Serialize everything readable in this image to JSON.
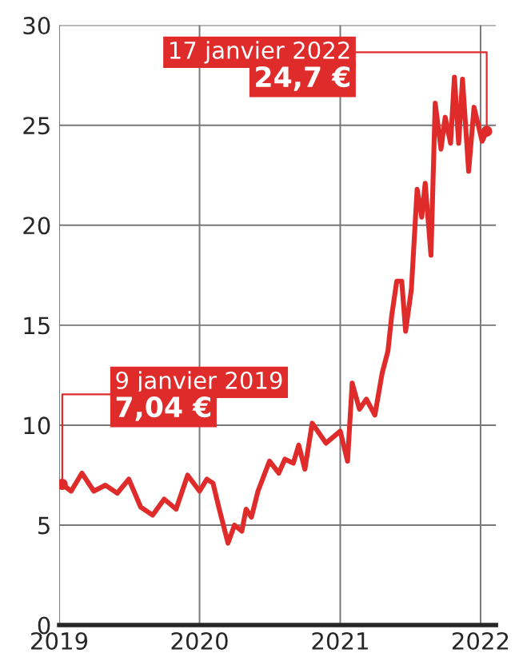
{
  "chart_data": {
    "type": "line",
    "x": [
      "2019-01-09",
      "2019-02-01",
      "2019-03-01",
      "2019-04-01",
      "2019-05-01",
      "2019-06-01",
      "2019-07-01",
      "2019-08-01",
      "2019-09-01",
      "2019-10-01",
      "2019-11-01",
      "2019-12-01",
      "2020-01-01",
      "2020-01-20",
      "2020-02-05",
      "2020-02-20",
      "2020-03-15",
      "2020-04-01",
      "2020-04-20",
      "2020-05-01",
      "2020-05-15",
      "2020-06-01",
      "2020-07-01",
      "2020-07-25",
      "2020-08-10",
      "2020-09-01",
      "2020-09-15",
      "2020-10-01",
      "2020-10-20",
      "2020-11-25",
      "2021-01-01",
      "2021-01-20",
      "2021-02-01",
      "2021-02-20",
      "2021-03-10",
      "2021-04-01",
      "2021-04-20",
      "2021-05-05",
      "2021-05-15",
      "2021-05-28",
      "2021-06-10",
      "2021-06-20",
      "2021-07-05",
      "2021-07-20",
      "2021-08-01",
      "2021-08-10",
      "2021-08-25",
      "2021-09-05",
      "2021-09-20",
      "2021-10-01",
      "2021-10-15",
      "2021-10-25",
      "2021-11-05",
      "2021-11-15",
      "2021-12-01",
      "2021-12-15",
      "2022-01-05",
      "2022-01-17"
    ],
    "series": [
      {
        "color": "#e02b2b",
        "values": [
          7.04,
          6.7,
          7.6,
          6.7,
          7.0,
          6.6,
          7.3,
          5.9,
          5.5,
          6.3,
          5.8,
          7.5,
          6.7,
          7.3,
          7.1,
          5.9,
          4.1,
          5.0,
          4.7,
          5.8,
          5.4,
          6.7,
          8.2,
          7.6,
          8.3,
          8.1,
          9.0,
          7.8,
          10.1,
          9.1,
          9.7,
          8.2,
          12.1,
          10.8,
          11.3,
          10.5,
          12.6,
          13.7,
          15.5,
          17.2,
          17.2,
          14.7,
          16.8,
          21.8,
          20.4,
          22.1,
          18.5,
          26.1,
          23.8,
          25.4,
          24.1,
          27.4,
          24.1,
          27.3,
          22.7,
          25.9,
          24.2,
          24.7
        ]
      }
    ],
    "xlim": [
      "2019-01-01",
      "2022-02-10"
    ],
    "xticks": [
      "2019",
      "2020",
      "2021",
      "2022"
    ],
    "ylim": [
      0,
      30
    ],
    "yticks": [
      0,
      5,
      10,
      15,
      20,
      25,
      30
    ],
    "grid": true,
    "annotations": [
      {
        "text": "9 janvier 2019\n7,04 €",
        "x": "2019-01-09",
        "y": 7.04
      },
      {
        "text": "17 janvier 2022\n24,7 €",
        "x": "2022-01-17",
        "y": 24.7
      }
    ]
  }
}
